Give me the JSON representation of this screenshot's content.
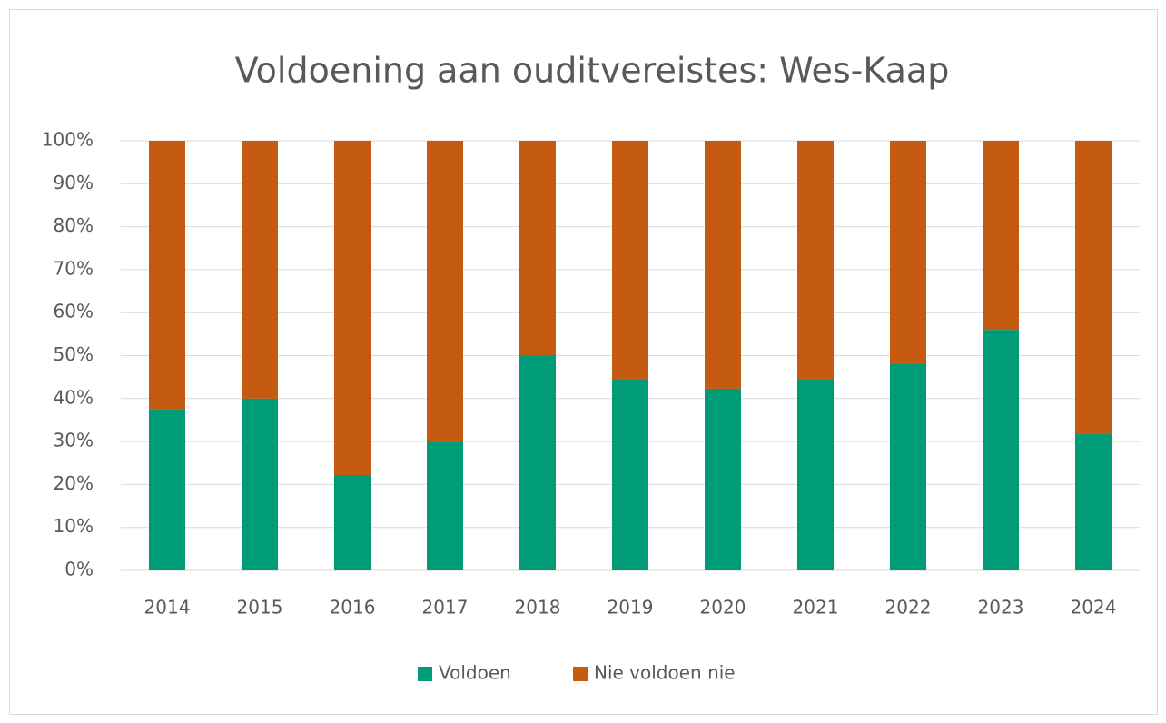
{
  "chart_data": {
    "type": "stacked_bar_100",
    "title": "Voldoening aan ouditvereistes: Wes-Kaap",
    "categories": [
      "2014",
      "2015",
      "2016",
      "2017",
      "2018",
      "2019",
      "2020",
      "2021",
      "2022",
      "2023",
      "2024"
    ],
    "series": [
      {
        "name": "Voldoen",
        "color": "#009b77",
        "values": [
          37.5,
          40,
          22.2,
          30,
          50,
          44.4,
          42.3,
          44.4,
          48,
          56,
          31.7
        ]
      },
      {
        "name": "Nie voldoen nie",
        "color": "#c55a11",
        "values": [
          62.5,
          60,
          77.8,
          70,
          50,
          55.6,
          57.7,
          55.6,
          52,
          44,
          68.3
        ]
      }
    ],
    "ylim": [
      0,
      100
    ],
    "yticks": [
      {
        "value": 0,
        "label": "0%"
      },
      {
        "value": 10,
        "label": "10%"
      },
      {
        "value": 20,
        "label": "20%"
      },
      {
        "value": 30,
        "label": "30%"
      },
      {
        "value": 40,
        "label": "40%"
      },
      {
        "value": 50,
        "label": "50%"
      },
      {
        "value": 60,
        "label": "60%"
      },
      {
        "value": 70,
        "label": "70%"
      },
      {
        "value": 80,
        "label": "80%"
      },
      {
        "value": 90,
        "label": "90%"
      },
      {
        "value": 100,
        "label": "100%"
      }
    ],
    "grid": true,
    "legend": "bottom"
  }
}
